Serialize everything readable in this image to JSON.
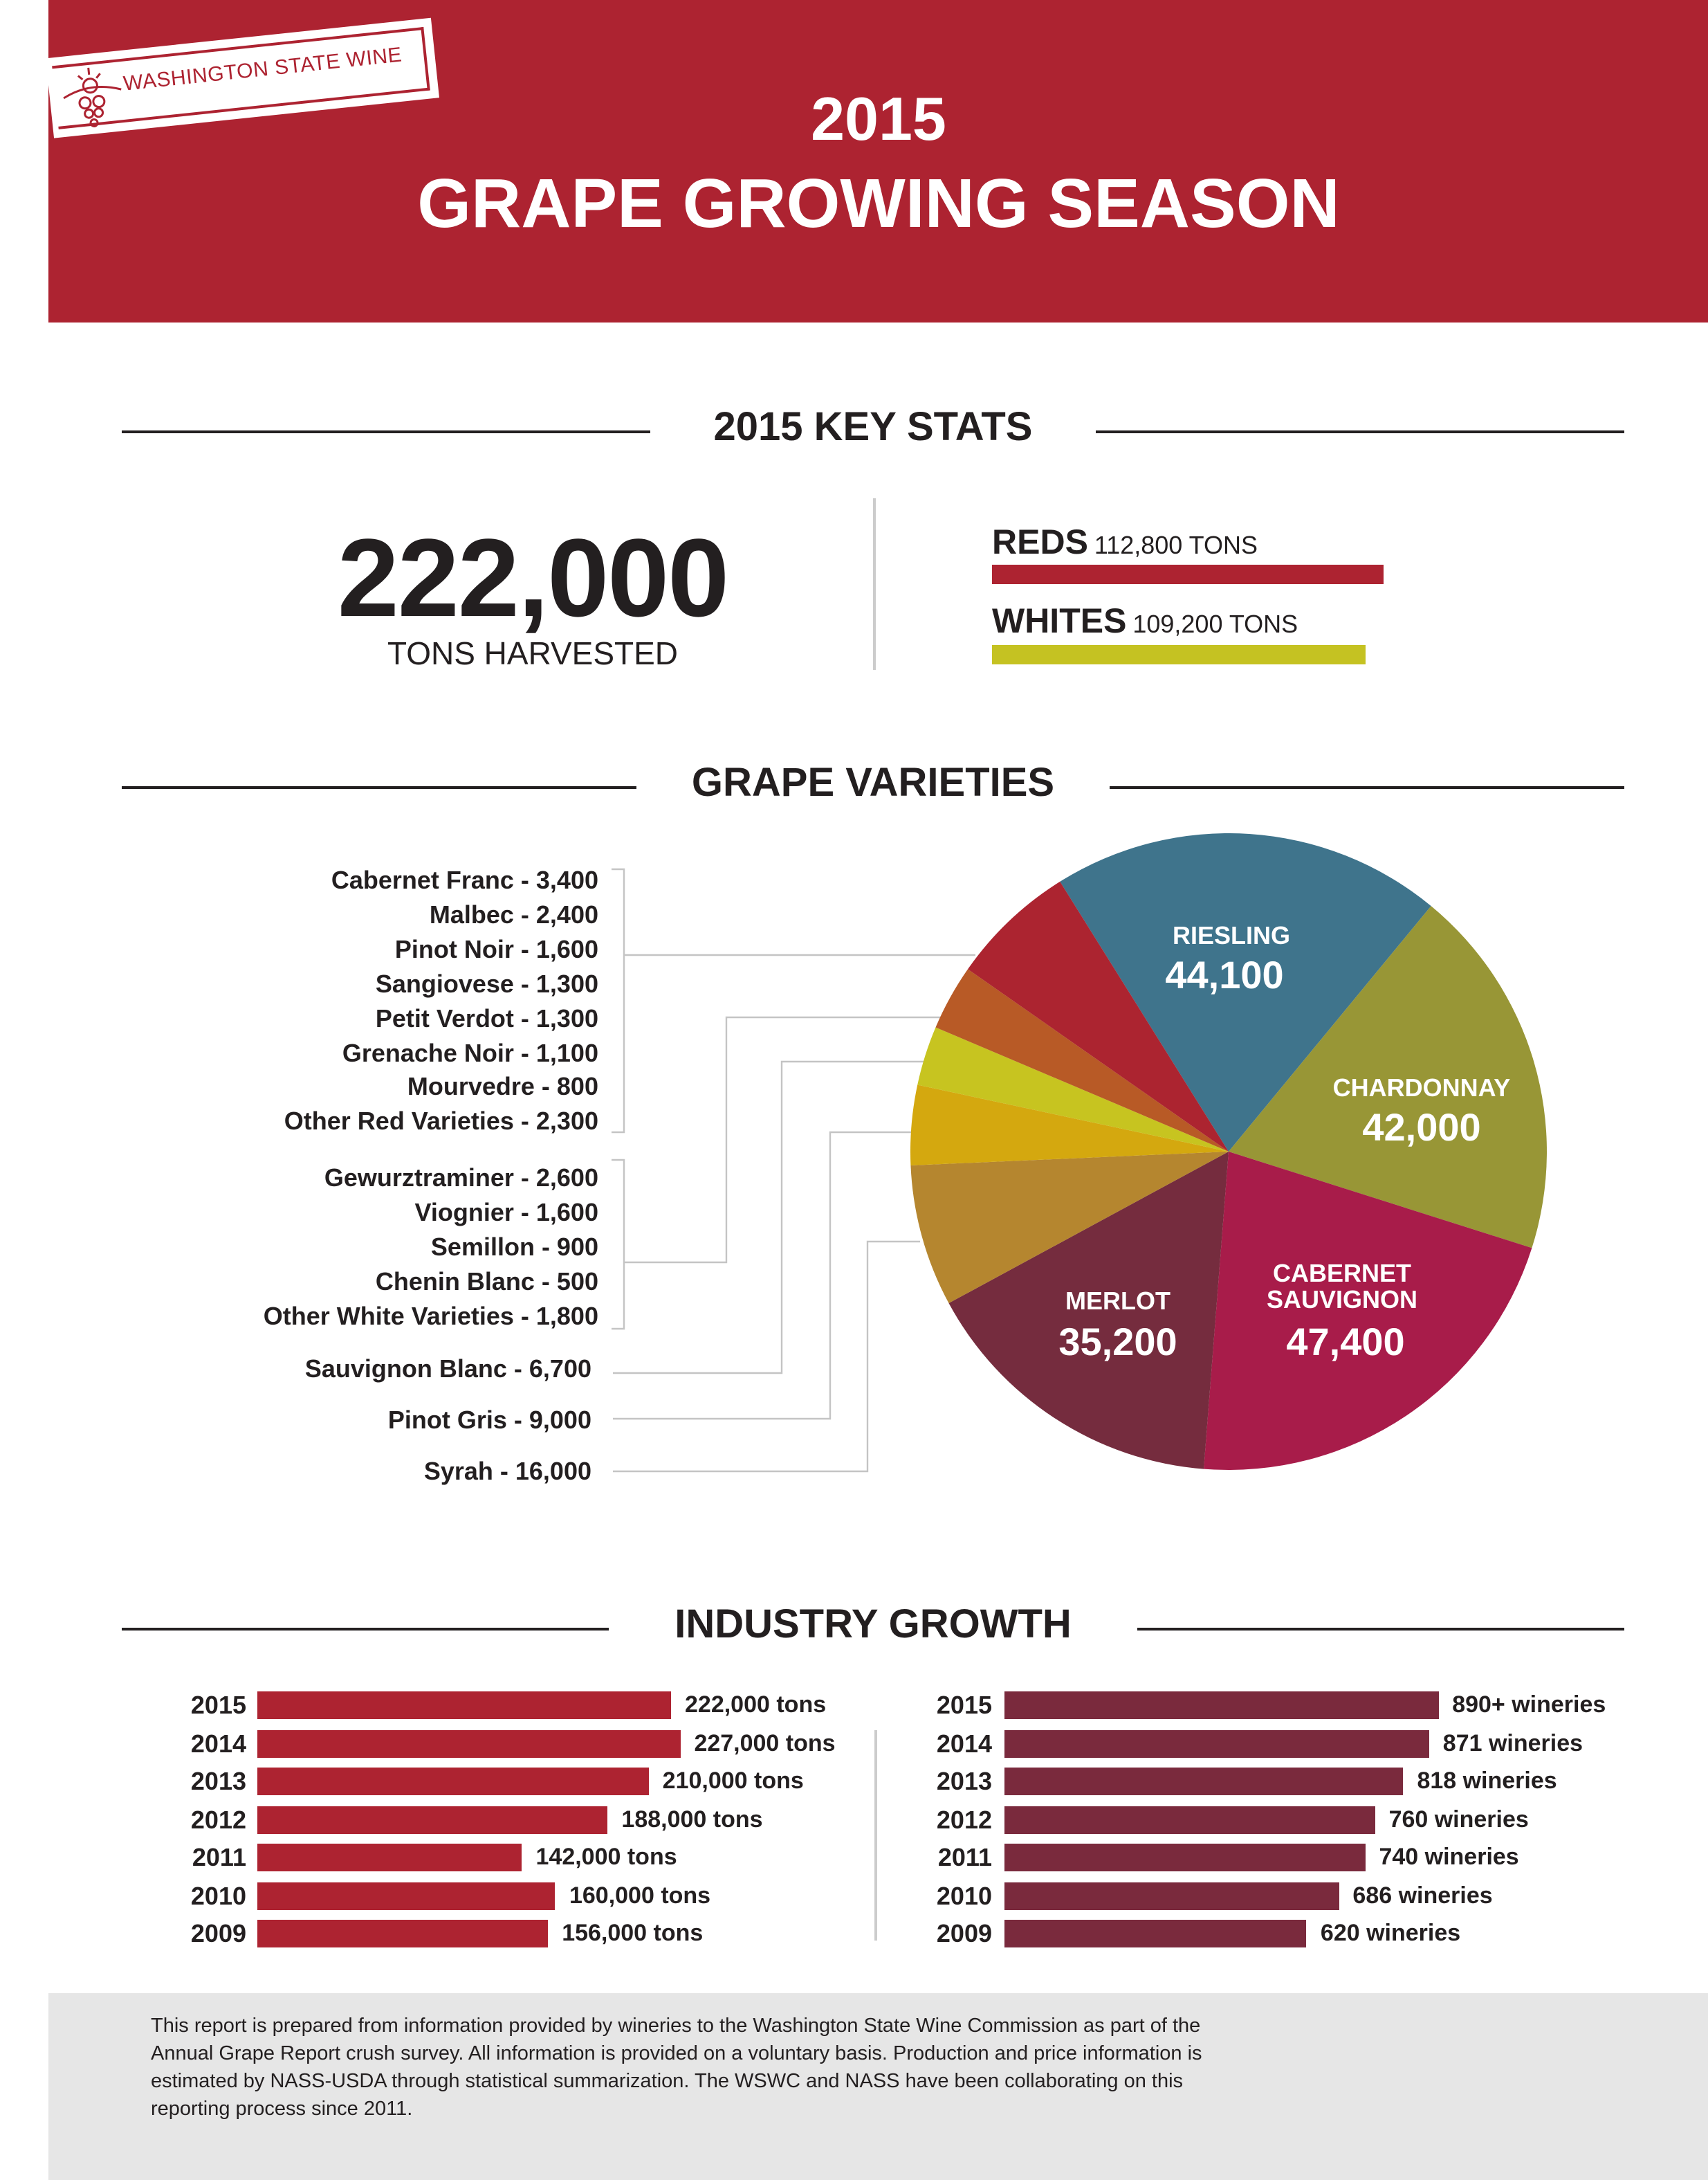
{
  "header": {
    "logo_text": "WASHINGTON STATE WINE",
    "year": "2015",
    "title": "GRAPE GROWING SEASON",
    "brand_color": "#ad2331"
  },
  "key_stats": {
    "heading": "2015 KEY STATS",
    "total": "222,000",
    "total_label": "TONS HARVESTED",
    "reds_label": "REDS",
    "reds_value": "112,800 TONS",
    "reds_color": "#ad2331",
    "whites_label": "WHITES",
    "whites_value": "109,200 TONS",
    "whites_color": "#c5c222"
  },
  "chart_data": [
    {
      "type": "pie",
      "title": "GRAPE VARIETIES",
      "slices": [
        {
          "name": "RIESLING",
          "value": 44100,
          "label": "44,100",
          "color": "#3f748c"
        },
        {
          "name": "CHARDONNAY",
          "value": 42000,
          "label": "42,000",
          "color": "#989636"
        },
        {
          "name": "CABERNET SAUVIGNON",
          "value": 47400,
          "label": "47,400",
          "color": "#a81c4a"
        },
        {
          "name": "MERLOT",
          "value": 35200,
          "label": "35,200",
          "color": "#752c3e"
        },
        {
          "name": "Syrah",
          "value": 16000,
          "color": "#b5862f"
        },
        {
          "name": "Pinot Gris",
          "value": 9000,
          "color": "#d4a80f"
        },
        {
          "name": "Sauvignon Blanc",
          "value": 6700,
          "color": "#c7c420"
        },
        {
          "name": "Other whites",
          "value": 7400,
          "color": "#b85a26"
        },
        {
          "name": "Other reds",
          "value": 14200,
          "color": "#ac2430"
        }
      ],
      "red_varieties": [
        "Cabernet Franc - 3,400",
        "Malbec - 2,400",
        "Pinot Noir - 1,600",
        "Sangiovese - 1,300",
        "Petit Verdot - 1,300",
        "Grenache Noir - 1,100",
        "Mourvedre - 800",
        "Other Red Varieties - 2,300"
      ],
      "white_varieties": [
        "Gewurztraminer - 2,600",
        "Viognier - 1,600",
        "Semillon - 900",
        "Chenin Blanc - 500",
        "Other White Varieties - 1,800"
      ],
      "single_labels": [
        "Sauvignon Blanc - 6,700",
        "Pinot Gris - 9,000",
        "Syrah - 16,000"
      ]
    },
    {
      "type": "bar",
      "orientation": "horizontal",
      "categories": [
        "2015",
        "2014",
        "2013",
        "2012",
        "2011",
        "2010",
        "2009"
      ],
      "values": [
        222000,
        227000,
        210000,
        188000,
        142000,
        160000,
        156000
      ],
      "labels": [
        "222,000 tons",
        "227,000 tons",
        "210,000 tons",
        "188,000 tons",
        "142,000 tons",
        "160,000 tons",
        "156,000 tons"
      ],
      "color": "#ad2331"
    },
    {
      "type": "bar",
      "orientation": "horizontal",
      "categories": [
        "2015",
        "2014",
        "2013",
        "2012",
        "2011",
        "2010",
        "2009"
      ],
      "values": [
        890,
        871,
        818,
        760,
        740,
        686,
        620
      ],
      "labels": [
        "890+ wineries",
        "871 wineries",
        "818 wineries",
        "760 wineries",
        "740 wineries",
        "686 wineries",
        "620 wineries"
      ],
      "color": "#7a2a3d"
    }
  ],
  "sections": {
    "varieties_heading": "GRAPE VARIETIES",
    "growth_heading": "INDUSTRY GROWTH"
  },
  "footer": {
    "text": "This report is prepared from information provided by wineries to the Washington State Wine Commission as part of the Annual Grape Report crush survey. All information is provided on a voluntary basis. Production and price information is estimated by NASS-USDA through statistical summarization. The WSWC and NASS have been collaborating on this reporting process since 2011."
  }
}
